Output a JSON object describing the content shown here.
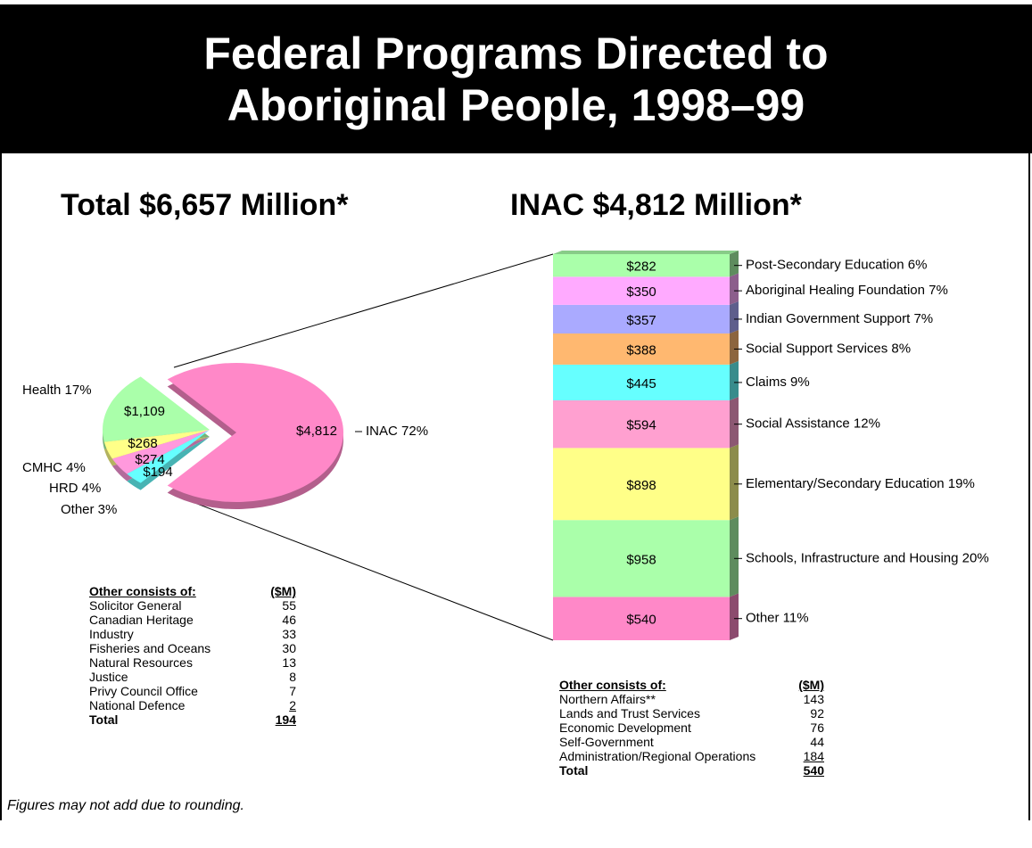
{
  "title": "Federal Programs Directed to Aboriginal People, 1998–99",
  "chart_data": [
    {
      "type": "pie",
      "title": "Total $6,657 Million*",
      "categories": [
        "INAC 72%",
        "Health 17%",
        "CMHC 4%",
        "HRD 4%",
        "Other 3%"
      ],
      "values": [
        4812,
        1109,
        268,
        274,
        194
      ],
      "value_labels": [
        "$4,812",
        "$1,109",
        "$268",
        "$274",
        "$194"
      ],
      "colors": [
        "#ff88c8",
        "#aaffaa",
        "#ffff88",
        "#ff99dd",
        "#66ffff"
      ]
    },
    {
      "type": "stacked_bar",
      "title": "INAC $4,812 Million*",
      "categories": [
        "Other 11%",
        "Schools, Infrastructure and Housing 20%",
        "Elementary/Secondary Education 19%",
        "Social Assistance 12%",
        "Claims 9%",
        "Social Support Services 8%",
        "Indian Government Support 7%",
        "Aboriginal Healing Foundation 7%",
        "Post-Secondary Education 6%"
      ],
      "values": [
        540,
        958,
        898,
        594,
        445,
        388,
        357,
        350,
        282
      ],
      "value_labels": [
        "$540",
        "$958",
        "$898",
        "$594",
        "$445",
        "$388",
        "$357",
        "$350",
        "$282"
      ],
      "colors": [
        "#ff88c8",
        "#aaffaa",
        "#ffff88",
        "#ffa0d0",
        "#66ffff",
        "#ffb870",
        "#aaaaff",
        "#ffaaff",
        "#aaffaa"
      ]
    }
  ],
  "tables": [
    {
      "header": [
        "Other consists of:",
        "($M)"
      ],
      "rows": [
        [
          "Solicitor General",
          55
        ],
        [
          "Canadian Heritage",
          46
        ],
        [
          "Industry",
          33
        ],
        [
          "Fisheries and Oceans",
          30
        ],
        [
          "Natural Resources",
          13
        ],
        [
          "Justice",
          8
        ],
        [
          "Privy Council Office",
          7
        ],
        [
          "National Defence",
          2
        ]
      ],
      "total": [
        "Total",
        194
      ]
    },
    {
      "header": [
        "Other consists of:",
        "($M)"
      ],
      "rows": [
        [
          "Northern Affairs**",
          143
        ],
        [
          "Lands and Trust Services",
          92
        ],
        [
          "Economic Development",
          76
        ],
        [
          "Self-Government",
          44
        ],
        [
          "Administration/Regional Operations",
          184
        ]
      ],
      "total": [
        "Total",
        540
      ]
    }
  ],
  "footnote": "Figures may not add due to rounding."
}
